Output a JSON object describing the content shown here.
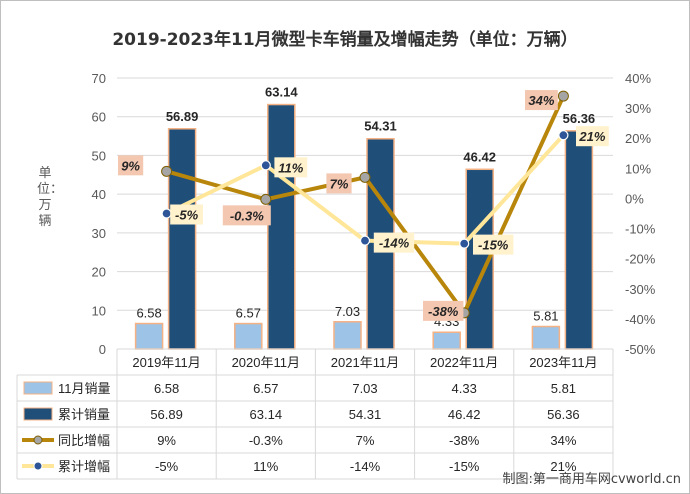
{
  "title": "2019-2023年11月微型卡车销量及增幅走势（单位：万辆）",
  "credit": "制图:第一商用车网cvworld.cn",
  "chart_data": {
    "type": "bar",
    "categories": [
      "2019年11月",
      "2020年11月",
      "2021年11月",
      "2022年11月",
      "2023年11月"
    ],
    "ylabel": "单位：万辆",
    "ylim": [
      0,
      70
    ],
    "y_ticks": [
      "0",
      "10",
      "20",
      "30",
      "40",
      "50",
      "60",
      "70"
    ],
    "y2lim": [
      -50,
      40
    ],
    "y2_ticks": [
      "-50%",
      "-40%",
      "-30%",
      "-20%",
      "-10%",
      "0%",
      "10%",
      "20%",
      "30%",
      "40%"
    ],
    "legend_position": "bottom-table",
    "series": [
      {
        "name": "11月销量",
        "kind": "bar",
        "axis": "left",
        "color": "#9dc3e6",
        "values": [
          6.58,
          6.57,
          7.03,
          4.33,
          5.81
        ],
        "labels": [
          "6.58",
          "6.57",
          "7.03",
          "4.33",
          "5.81"
        ]
      },
      {
        "name": "累计销量",
        "kind": "bar",
        "axis": "left",
        "color": "#1f4e79",
        "values": [
          56.89,
          63.14,
          54.31,
          46.42,
          56.36
        ],
        "labels": [
          "56.89",
          "63.14",
          "54.31",
          "46.42",
          "56.36"
        ]
      },
      {
        "name": "同比增幅",
        "kind": "line",
        "axis": "right",
        "color": "#b8860b",
        "values": [
          9,
          -0.3,
          7,
          -38,
          34
        ],
        "labels": [
          "9%",
          "-0.3%",
          "7%",
          "-38%",
          "34%"
        ]
      },
      {
        "name": "累计增幅",
        "kind": "line",
        "axis": "right",
        "color": "#ffe699",
        "values": [
          -5,
          11,
          -14,
          -15,
          21
        ],
        "labels": [
          "-5%",
          "11%",
          "-14%",
          "-15%",
          "21%"
        ]
      }
    ]
  }
}
